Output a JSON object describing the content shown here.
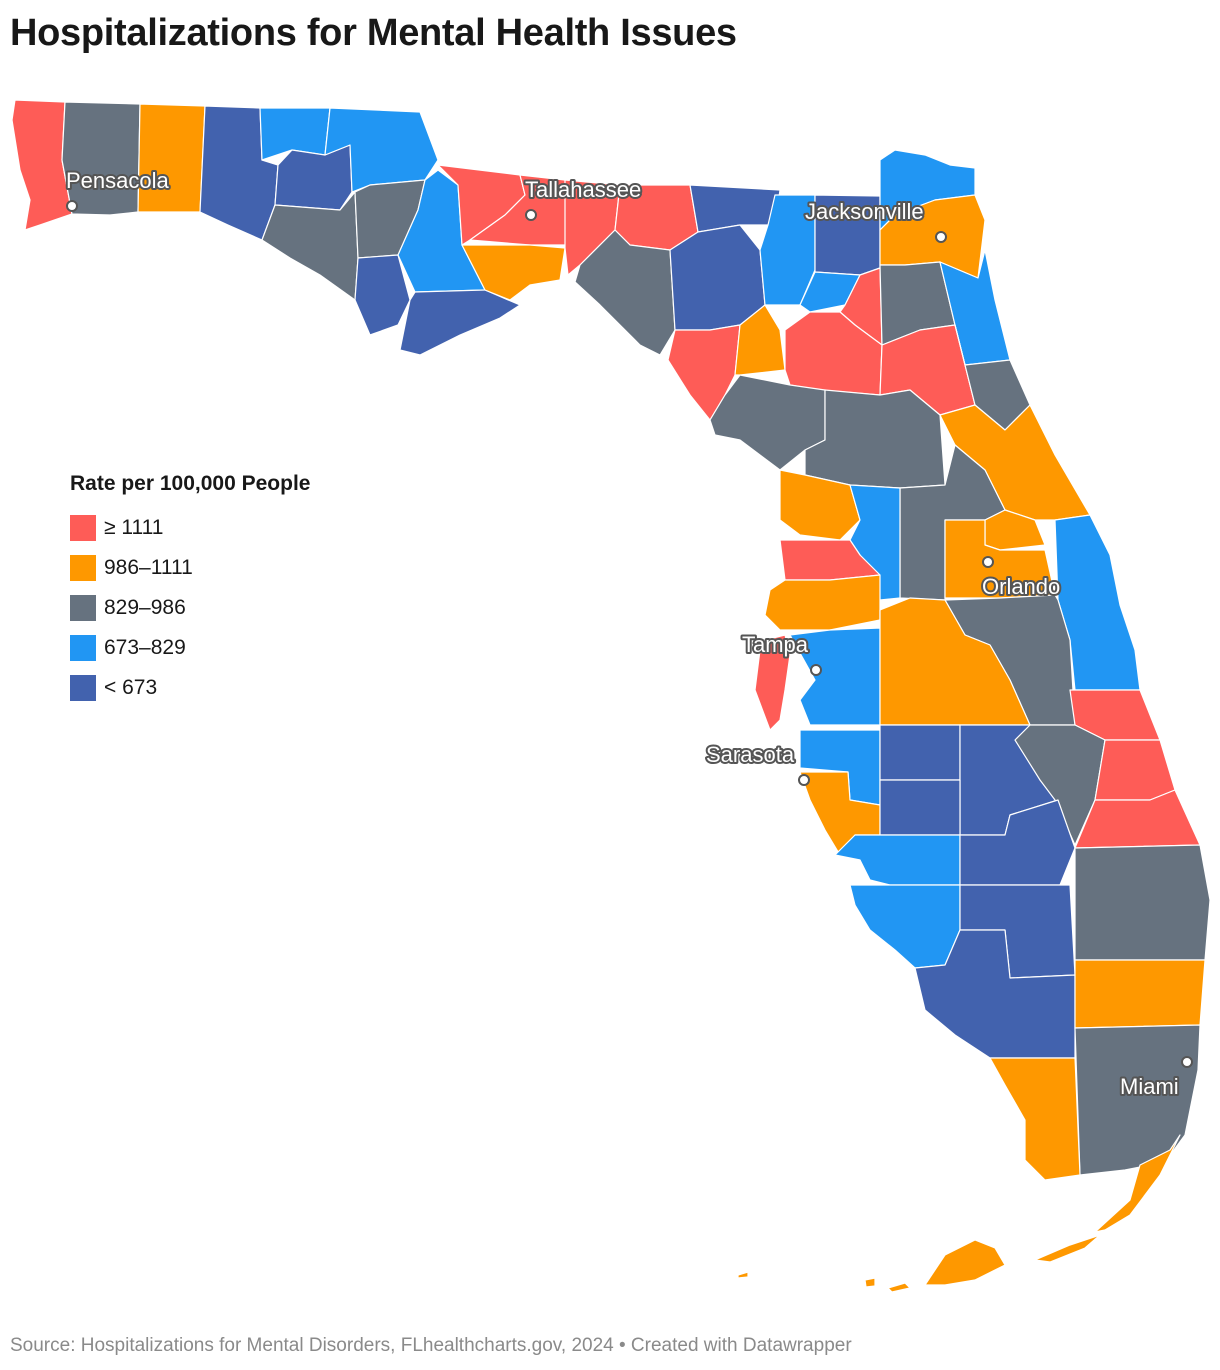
{
  "title": "Hospitalizations for Mental Health Issues",
  "legend": {
    "title": "Rate per 100,000 People",
    "items": [
      {
        "label": "≥ 1111",
        "color": "#fe5c57"
      },
      {
        "label": "986–1111",
        "color": "#fe9800"
      },
      {
        "label": "829–986",
        "color": "#66727f"
      },
      {
        "label": "673–829",
        "color": "#2196f3"
      },
      {
        "label": "< 673",
        "color": "#4262ae"
      }
    ]
  },
  "cities": [
    {
      "name": "Pensacola"
    },
    {
      "name": "Tallahassee"
    },
    {
      "name": "Jacksonville"
    },
    {
      "name": "Orlando"
    },
    {
      "name": "Tampa"
    },
    {
      "name": "Sarasota"
    },
    {
      "name": "Miami"
    }
  ],
  "source": "Source: Hospitalizations for Mental Disorders, FLhealthcharts.gov, 2024 • Created with Datawrapper"
}
